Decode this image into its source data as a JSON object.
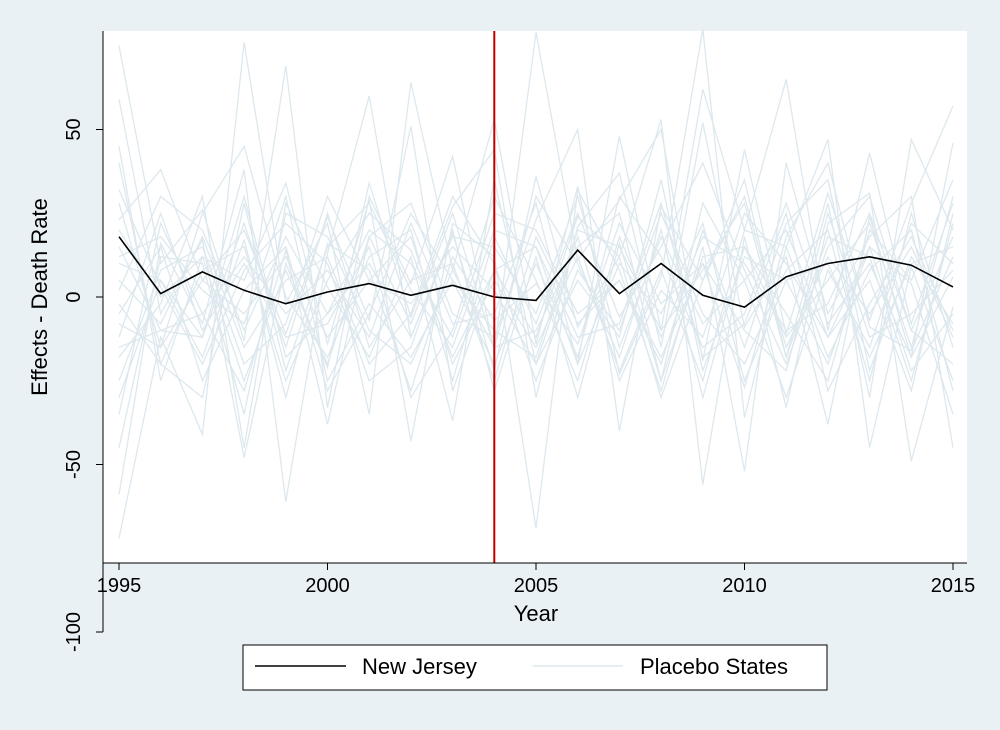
{
  "chart_data": {
    "type": "line",
    "title": "",
    "xlabel": "Year",
    "ylabel": "Effects - Death Rate",
    "xlim": [
      1995,
      2015
    ],
    "ylim": [
      -100,
      80
    ],
    "x_ticks": [
      1995,
      2000,
      2005,
      2010,
      2015
    ],
    "y_ticks": [
      -100,
      -50,
      0,
      50
    ],
    "intervention_year": 2004,
    "intervention_color": "#c00000",
    "grid": false,
    "legend_position": "bottom",
    "colors": {
      "treated": "#000000",
      "placebo": "#dde8ee",
      "plot_background": "#ffffff",
      "outer_background": "#eaf1f4"
    },
    "x": [
      1995,
      1996,
      1997,
      1998,
      1999,
      2000,
      2001,
      2002,
      2003,
      2004,
      2005,
      2006,
      2007,
      2008,
      2009,
      2010,
      2011,
      2012,
      2013,
      2014,
      2015
    ],
    "series": [
      {
        "name": "New Jersey",
        "role": "treated",
        "values": [
          18,
          1,
          7.5,
          2,
          -2,
          1.5,
          4,
          0.5,
          3.5,
          0,
          -1,
          14,
          1,
          10,
          0.5,
          -3,
          6,
          10,
          12,
          9.5,
          3
        ]
      },
      {
        "role": "placebo",
        "values": [
          75,
          10,
          26,
          -13,
          69,
          -33,
          30,
          4,
          42,
          -16,
          79,
          11,
          29,
          50,
          -19,
          44,
          -11,
          31,
          -7,
          28,
          57
        ]
      },
      {
        "role": "placebo",
        "values": [
          -72,
          -12,
          -41,
          76,
          -2,
          22,
          -35,
          64,
          8,
          53,
          -14,
          33,
          -23,
          6,
          80,
          -36,
          15,
          47,
          -45,
          9,
          -25
        ]
      },
      {
        "role": "placebo",
        "values": [
          59,
          -5,
          17,
          -48,
          10,
          -21,
          34,
          -6,
          27,
          44,
          -30,
          21,
          37,
          -15,
          52,
          -9,
          12,
          -38,
          24,
          -18,
          46
        ]
      },
      {
        "role": "placebo",
        "values": [
          -59,
          16,
          -8,
          38,
          -61,
          13,
          60,
          -12,
          19,
          -22,
          36,
          -9,
          12,
          53,
          -56,
          18,
          -33,
          22,
          31,
          -49,
          -3
        ]
      },
      {
        "role": "placebo",
        "values": [
          45,
          -25,
          12,
          5,
          34,
          -14,
          29,
          -43,
          22,
          12,
          -69,
          32,
          8,
          -28,
          15,
          -52,
          40,
          -5,
          18,
          30,
          -45
        ]
      },
      {
        "role": "placebo",
        "values": [
          -35,
          22,
          -5,
          -28,
          14,
          -38,
          18,
          28,
          -5,
          -12,
          23,
          50,
          -40,
          27,
          5,
          35,
          -18,
          28,
          -30,
          47,
          20
        ]
      },
      {
        "role": "placebo",
        "values": [
          23,
          38,
          5,
          20,
          -11,
          24,
          -7,
          51,
          -28,
          8,
          15,
          -20,
          48,
          -10,
          62,
          20,
          65,
          -10,
          43,
          -8,
          28
        ]
      },
      {
        "role": "placebo",
        "values": [
          -18,
          -2,
          30,
          -45,
          28,
          3,
          -18,
          12,
          -37,
          35,
          -20,
          5,
          -12,
          35,
          -22,
          12,
          5,
          -20,
          15,
          4,
          -35
        ]
      },
      {
        "role": "placebo",
        "values": [
          10,
          5,
          -18,
          17,
          -30,
          16,
          8,
          -28,
          12,
          -7,
          4,
          -14,
          22,
          -2,
          10,
          -27,
          18,
          40,
          -9,
          -16,
          12
        ]
      },
      {
        "role": "placebo",
        "values": [
          -8,
          -15,
          25,
          45,
          0,
          -18,
          12,
          20,
          -25,
          18,
          -8,
          25,
          -6,
          15,
          40,
          8,
          -20,
          15,
          30,
          -10,
          -20
        ]
      },
      {
        "role": "placebo",
        "values": [
          32,
          3,
          -20,
          8,
          22,
          10,
          -25,
          -15,
          20,
          -28,
          12,
          -30,
          16,
          -25,
          28,
          5,
          -30,
          8,
          -15,
          22,
          10
        ]
      },
      {
        "role": "placebo",
        "values": [
          -25,
          8,
          15,
          -20,
          -8,
          30,
          5,
          -2,
          15,
          2,
          -20,
          18,
          -25,
          2,
          -12,
          25,
          10,
          -12,
          5,
          -28,
          25
        ]
      },
      {
        "role": "placebo",
        "values": [
          15,
          -10,
          -12,
          30,
          -18,
          -5,
          20,
          10,
          -12,
          25,
          20,
          -5,
          5,
          -20,
          20,
          -15,
          22,
          35,
          -22,
          12,
          -8
        ]
      },
      {
        "role": "placebo",
        "values": [
          -45,
          12,
          10,
          -35,
          25,
          18,
          -10,
          -20,
          8,
          -15,
          30,
          10,
          -18,
          20,
          -30,
          15,
          -5,
          -25,
          20,
          5,
          35
        ]
      },
      {
        "role": "placebo",
        "values": [
          40,
          -20,
          8,
          15,
          -25,
          5,
          25,
          14,
          -18,
          8,
          -12,
          24,
          12,
          -30,
          5,
          30,
          -15,
          12,
          -5,
          15,
          -12
        ]
      },
      {
        "role": "placebo",
        "values": [
          -5,
          15,
          -25,
          2,
          15,
          -28,
          -5,
          25,
          5,
          -20,
          10,
          -18,
          30,
          12,
          -15,
          -5,
          28,
          -8,
          10,
          -18,
          6
        ]
      },
      {
        "role": "placebo",
        "values": [
          5,
          -8,
          18,
          -15,
          5,
          12,
          -20,
          -5,
          30,
          10,
          -25,
          8,
          -10,
          25,
          -5,
          -20,
          8,
          20,
          -25,
          25,
          -15
        ]
      },
      {
        "role": "placebo",
        "values": [
          -12,
          25,
          -10,
          10,
          -12,
          -8,
          15,
          -30,
          -10,
          30,
          5,
          -25,
          18,
          -12,
          18,
          10,
          -10,
          -2,
          25,
          -10,
          18
        ]
      },
      {
        "role": "placebo",
        "values": [
          28,
          -15,
          5,
          -5,
          12,
          -12,
          5,
          18,
          -20,
          5,
          -15,
          12,
          -22,
          8,
          -25,
          20,
          15,
          -18,
          8,
          20,
          -28
        ]
      },
      {
        "role": "placebo",
        "values": [
          -30,
          5,
          -12,
          22,
          -15,
          25,
          -15,
          5,
          10,
          -25,
          18,
          -8,
          5,
          -18,
          10,
          -10,
          -22,
          25,
          -12,
          -5,
          8
        ]
      },
      {
        "role": "placebo",
        "values": [
          2,
          30,
          20,
          -10,
          18,
          -5,
          10,
          -12,
          18,
          15,
          -5,
          30,
          -15,
          18,
          -8,
          5,
          20,
          -12,
          15,
          -22,
          -5
        ]
      },
      {
        "role": "placebo",
        "values": [
          -15,
          -10,
          -5,
          12,
          -5,
          8,
          -12,
          22,
          -8,
          -5,
          28,
          -20,
          10,
          -5,
          22,
          -25,
          5,
          10,
          -18,
          10,
          15
        ]
      },
      {
        "role": "placebo",
        "values": [
          20,
          0,
          12,
          -25,
          8,
          -20,
          18,
          -8,
          25,
          -15,
          -10,
          15,
          25,
          -25,
          12,
          15,
          -12,
          5,
          22,
          -15,
          30
        ]
      },
      {
        "role": "placebo",
        "values": [
          -2,
          -20,
          -30,
          28,
          -22,
          15,
          28,
          2,
          -15,
          20,
          15,
          -12,
          -8,
          28,
          -18,
          -8,
          25,
          -28,
          -2,
          18,
          -10
        ]
      },
      {
        "role": "placebo",
        "values": [
          12,
          18,
          2,
          -8,
          30,
          -25,
          -2,
          -18,
          5,
          -10,
          -18,
          20,
          15,
          -10,
          8,
          28,
          -18,
          18,
          12,
          -25,
          22
        ]
      }
    ]
  },
  "legend": {
    "items": [
      {
        "label": "New Jersey",
        "color": "#000000"
      },
      {
        "label": "Placebo States",
        "color": "#dde8ee"
      }
    ]
  }
}
